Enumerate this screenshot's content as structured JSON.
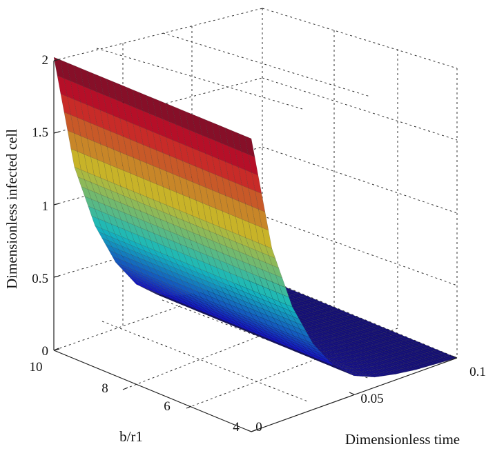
{
  "chart_data": {
    "type": "surface3d",
    "title": "",
    "zlabel": "Dimensionless infected cell",
    "xlabel": "Dimensionless time",
    "ylabel": "b/r1",
    "z_ticks": [
      "0",
      "0.5",
      "1",
      "1.5",
      "2"
    ],
    "x_ticks": [
      "0",
      "0.05",
      "0.1"
    ],
    "y_ticks": [
      "4",
      "6",
      "8",
      "10"
    ],
    "zlim": [
      0,
      2
    ],
    "xlim": [
      0,
      0.1
    ],
    "ylim": [
      4,
      10
    ],
    "grid": true,
    "colormap": "jet",
    "surface_profile": {
      "time": [
        0,
        0.01,
        0.02,
        0.03,
        0.04,
        0.05,
        0.06,
        0.07,
        0.08,
        0.09,
        0.1
      ],
      "infected_cell": [
        2.0,
        1.2,
        0.75,
        0.45,
        0.25,
        0.13,
        0.07,
        0.04,
        0.02,
        0.01,
        0.0
      ]
    }
  }
}
